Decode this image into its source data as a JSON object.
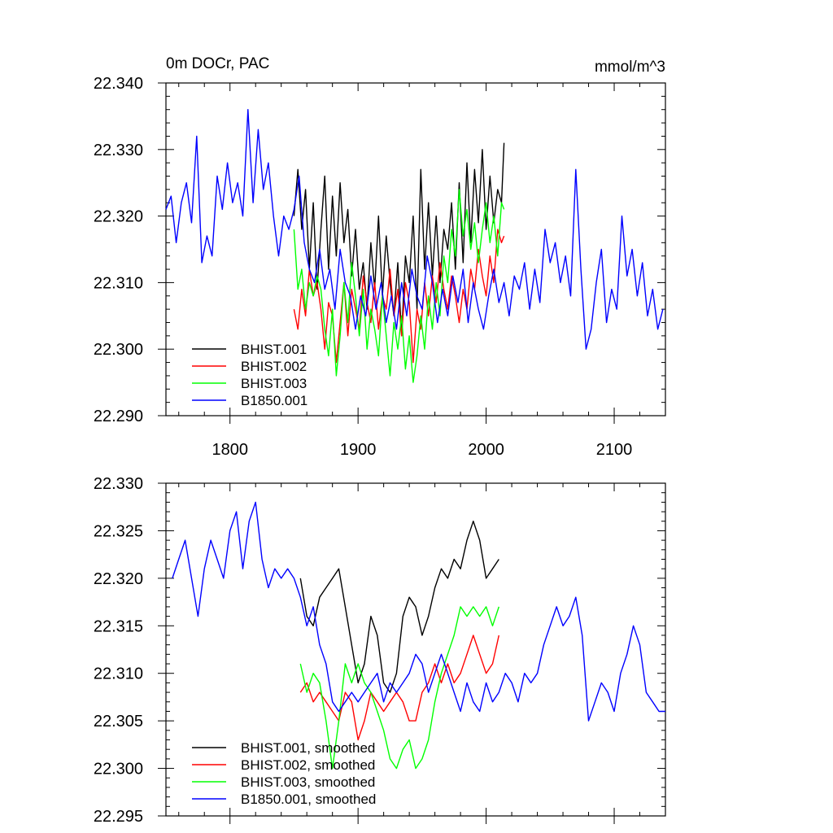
{
  "chart_data": [
    {
      "type": "line",
      "title": "0m DOCr, PAC",
      "units": "mmol/m^3",
      "xlabel": "",
      "ylabel": "",
      "xlim": [
        1750,
        2140
      ],
      "ylim": [
        22.29,
        22.34
      ],
      "xticks": [
        1800,
        1900,
        2000,
        2100
      ],
      "xtick_labels": [
        "1800",
        "1900",
        "2000",
        "2100"
      ],
      "yticks": [
        22.29,
        22.3,
        22.31,
        22.32,
        22.33,
        22.34
      ],
      "ytick_labels": [
        "22.290",
        "22.300",
        "22.310",
        "22.320",
        "22.330",
        "22.340"
      ],
      "legend_position": "bottom-left",
      "series": [
        {
          "name": "BHIST.001",
          "color": "#000000",
          "x": [
            1850,
            1853,
            1856,
            1859,
            1862,
            1865,
            1868,
            1871,
            1874,
            1877,
            1880,
            1883,
            1886,
            1889,
            1892,
            1895,
            1898,
            1901,
            1904,
            1907,
            1910,
            1913,
            1916,
            1919,
            1922,
            1925,
            1928,
            1931,
            1934,
            1937,
            1940,
            1943,
            1946,
            1949,
            1952,
            1955,
            1958,
            1961,
            1964,
            1967,
            1970,
            1973,
            1976,
            1979,
            1982,
            1985,
            1988,
            1991,
            1994,
            1997,
            2000,
            2003,
            2006,
            2009,
            2012,
            2014
          ],
          "y": [
            22.32,
            22.327,
            22.318,
            22.324,
            22.312,
            22.322,
            22.309,
            22.318,
            22.326,
            22.312,
            22.323,
            22.314,
            22.325,
            22.316,
            22.321,
            22.311,
            22.318,
            22.309,
            22.313,
            22.306,
            22.316,
            22.309,
            22.32,
            22.308,
            22.317,
            22.31,
            22.305,
            22.313,
            22.302,
            22.314,
            22.31,
            22.32,
            22.306,
            22.327,
            22.312,
            22.322,
            22.311,
            22.32,
            22.31,
            22.318,
            22.315,
            22.322,
            22.312,
            22.325,
            22.313,
            22.328,
            22.316,
            22.327,
            22.319,
            22.33,
            22.318,
            22.326,
            22.319,
            22.324,
            22.322,
            22.331
          ]
        },
        {
          "name": "BHIST.002",
          "color": "#ff0000",
          "x": [
            1850,
            1853,
            1856,
            1859,
            1862,
            1865,
            1868,
            1871,
            1874,
            1877,
            1880,
            1883,
            1886,
            1889,
            1892,
            1895,
            1898,
            1901,
            1904,
            1907,
            1910,
            1913,
            1916,
            1919,
            1922,
            1925,
            1928,
            1931,
            1934,
            1937,
            1940,
            1943,
            1946,
            1949,
            1952,
            1955,
            1958,
            1961,
            1964,
            1967,
            1970,
            1973,
            1976,
            1979,
            1982,
            1985,
            1988,
            1991,
            1994,
            1997,
            2000,
            2003,
            2006,
            2009,
            2012,
            2014
          ],
          "y": [
            22.306,
            22.303,
            22.309,
            22.305,
            22.312,
            22.308,
            22.31,
            22.306,
            22.3,
            22.307,
            22.305,
            22.298,
            22.304,
            22.31,
            22.302,
            22.309,
            22.306,
            22.303,
            22.311,
            22.307,
            22.304,
            22.31,
            22.303,
            22.308,
            22.306,
            22.312,
            22.305,
            22.309,
            22.302,
            22.31,
            22.307,
            22.298,
            22.306,
            22.303,
            22.31,
            22.305,
            22.311,
            22.307,
            22.313,
            22.309,
            22.306,
            22.311,
            22.308,
            22.304,
            22.309,
            22.306,
            22.312,
            22.309,
            22.315,
            22.311,
            22.308,
            22.314,
            22.31,
            22.318,
            22.316,
            22.317
          ]
        },
        {
          "name": "BHIST.003",
          "color": "#00ff00",
          "x": [
            1850,
            1853,
            1856,
            1859,
            1862,
            1865,
            1868,
            1871,
            1874,
            1877,
            1880,
            1883,
            1886,
            1889,
            1892,
            1895,
            1898,
            1901,
            1904,
            1907,
            1910,
            1913,
            1916,
            1919,
            1922,
            1925,
            1928,
            1931,
            1934,
            1937,
            1940,
            1943,
            1946,
            1949,
            1952,
            1955,
            1958,
            1961,
            1964,
            1967,
            1970,
            1973,
            1976,
            1979,
            1982,
            1985,
            1988,
            1991,
            1994,
            1997,
            2000,
            2003,
            2006,
            2009,
            2012,
            2014
          ],
          "y": [
            22.318,
            22.309,
            22.312,
            22.306,
            22.31,
            22.308,
            22.311,
            22.309,
            22.303,
            22.299,
            22.306,
            22.296,
            22.302,
            22.31,
            22.304,
            22.313,
            22.308,
            22.302,
            22.309,
            22.3,
            22.306,
            22.303,
            22.299,
            22.308,
            22.302,
            22.296,
            22.304,
            22.3,
            22.305,
            22.297,
            22.302,
            22.295,
            22.299,
            22.305,
            22.3,
            22.308,
            22.303,
            22.31,
            22.305,
            22.314,
            22.31,
            22.318,
            22.314,
            22.324,
            22.317,
            22.321,
            22.315,
            22.319,
            22.313,
            22.318,
            22.322,
            22.316,
            22.32,
            22.314,
            22.322,
            22.321
          ]
        },
        {
          "name": "B1850.001",
          "color": "#0000ff",
          "x": [
            1750,
            1754,
            1758,
            1762,
            1766,
            1770,
            1774,
            1778,
            1782,
            1786,
            1790,
            1794,
            1798,
            1802,
            1806,
            1810,
            1814,
            1818,
            1822,
            1826,
            1830,
            1834,
            1838,
            1842,
            1846,
            1850,
            1854,
            1858,
            1862,
            1866,
            1870,
            1874,
            1878,
            1882,
            1886,
            1890,
            1894,
            1898,
            1902,
            1906,
            1910,
            1914,
            1918,
            1922,
            1926,
            1930,
            1934,
            1938,
            1942,
            1946,
            1950,
            1954,
            1958,
            1962,
            1966,
            1970,
            1974,
            1978,
            1982,
            1986,
            1990,
            1994,
            1998,
            2002,
            2006,
            2010,
            2014,
            2018,
            2022,
            2026,
            2030,
            2034,
            2038,
            2042,
            2046,
            2050,
            2054,
            2058,
            2062,
            2066,
            2070,
            2074,
            2078,
            2082,
            2086,
            2090,
            2094,
            2098,
            2102,
            2106,
            2110,
            2114,
            2118,
            2122,
            2126,
            2130,
            2134,
            2138
          ],
          "y": [
            22.321,
            22.323,
            22.316,
            22.322,
            22.325,
            22.319,
            22.332,
            22.313,
            22.317,
            22.314,
            22.326,
            22.321,
            22.328,
            22.322,
            22.325,
            22.32,
            22.336,
            22.322,
            22.333,
            22.324,
            22.328,
            22.32,
            22.314,
            22.32,
            22.318,
            22.321,
            22.326,
            22.316,
            22.312,
            22.31,
            22.315,
            22.309,
            22.312,
            22.306,
            22.315,
            22.31,
            22.308,
            22.303,
            22.308,
            22.305,
            22.311,
            22.306,
            22.31,
            22.304,
            22.308,
            22.303,
            22.31,
            22.305,
            22.312,
            22.308,
            22.306,
            22.314,
            22.31,
            22.304,
            22.309,
            22.305,
            22.311,
            22.307,
            22.312,
            22.304,
            22.31,
            22.306,
            22.303,
            22.308,
            22.312,
            22.307,
            22.31,
            22.305,
            22.311,
            22.309,
            22.313,
            22.306,
            22.312,
            22.307,
            22.318,
            22.313,
            22.316,
            22.31,
            22.314,
            22.308,
            22.327,
            22.312,
            22.3,
            22.303,
            22.31,
            22.315,
            22.304,
            22.309,
            22.306,
            22.32,
            22.311,
            22.315,
            22.308,
            22.313,
            22.305,
            22.309,
            22.303,
            22.306
          ]
        }
      ]
    },
    {
      "type": "line",
      "title": "",
      "xlabel": "",
      "ylabel": "",
      "xlim": [
        1750,
        2140
      ],
      "ylim": [
        22.295,
        22.33
      ],
      "xticks": [
        1800,
        1900,
        2000,
        2100
      ],
      "yticks": [
        22.295,
        22.3,
        22.305,
        22.31,
        22.315,
        22.32,
        22.325,
        22.33
      ],
      "ytick_labels": [
        "22.295",
        "22.300",
        "22.305",
        "22.310",
        "22.315",
        "22.320",
        "22.325",
        "22.330"
      ],
      "legend_position": "bottom-left",
      "series": [
        {
          "name": "BHIST.001, smoothed",
          "color": "#000000",
          "x": [
            1855,
            1860,
            1865,
            1870,
            1875,
            1880,
            1885,
            1890,
            1895,
            1900,
            1905,
            1910,
            1915,
            1920,
            1925,
            1930,
            1935,
            1940,
            1945,
            1950,
            1955,
            1960,
            1965,
            1970,
            1975,
            1980,
            1985,
            1990,
            1995,
            2000,
            2005,
            2010
          ],
          "y": [
            22.32,
            22.316,
            22.315,
            22.318,
            22.319,
            22.32,
            22.321,
            22.317,
            22.313,
            22.309,
            22.311,
            22.316,
            22.314,
            22.309,
            22.308,
            22.31,
            22.316,
            22.318,
            22.317,
            22.314,
            22.316,
            22.319,
            22.321,
            22.32,
            22.322,
            22.321,
            22.324,
            22.326,
            22.324,
            22.32,
            22.321,
            22.322
          ]
        },
        {
          "name": "BHIST.002, smoothed",
          "color": "#ff0000",
          "x": [
            1855,
            1860,
            1865,
            1870,
            1875,
            1880,
            1885,
            1890,
            1895,
            1900,
            1905,
            1910,
            1915,
            1920,
            1925,
            1930,
            1935,
            1940,
            1945,
            1950,
            1955,
            1960,
            1965,
            1970,
            1975,
            1980,
            1985,
            1990,
            1995,
            2000,
            2005,
            2010
          ],
          "y": [
            22.308,
            22.309,
            22.307,
            22.308,
            22.307,
            22.306,
            22.305,
            22.308,
            22.307,
            22.303,
            22.305,
            22.308,
            22.307,
            22.306,
            22.307,
            22.308,
            22.307,
            22.305,
            22.305,
            22.308,
            22.309,
            22.311,
            22.309,
            22.311,
            22.309,
            22.31,
            22.312,
            22.314,
            22.312,
            22.31,
            22.311,
            22.314
          ]
        },
        {
          "name": "BHIST.003, smoothed",
          "color": "#00ff00",
          "x": [
            1855,
            1860,
            1865,
            1870,
            1875,
            1880,
            1885,
            1890,
            1895,
            1900,
            1905,
            1910,
            1915,
            1920,
            1925,
            1930,
            1935,
            1940,
            1945,
            1950,
            1955,
            1960,
            1965,
            1970,
            1975,
            1980,
            1985,
            1990,
            1995,
            2000,
            2005,
            2010
          ],
          "y": [
            22.311,
            22.308,
            22.31,
            22.309,
            22.305,
            22.3,
            22.305,
            22.311,
            22.309,
            22.311,
            22.309,
            22.308,
            22.306,
            22.304,
            22.301,
            22.3,
            22.302,
            22.303,
            22.3,
            22.301,
            22.303,
            22.307,
            22.31,
            22.312,
            22.314,
            22.317,
            22.316,
            22.317,
            22.316,
            22.317,
            22.315,
            22.317
          ]
        },
        {
          "name": "B1850.001, smoothed",
          "color": "#0000ff",
          "x": [
            1755,
            1760,
            1765,
            1770,
            1775,
            1780,
            1785,
            1790,
            1795,
            1800,
            1805,
            1810,
            1815,
            1820,
            1825,
            1830,
            1835,
            1840,
            1845,
            1850,
            1855,
            1860,
            1865,
            1870,
            1875,
            1880,
            1885,
            1890,
            1895,
            1900,
            1905,
            1910,
            1915,
            1920,
            1925,
            1930,
            1935,
            1940,
            1945,
            1950,
            1955,
            1960,
            1965,
            1970,
            1975,
            1980,
            1985,
            1990,
            1995,
            2000,
            2005,
            2010,
            2015,
            2020,
            2025,
            2030,
            2035,
            2040,
            2045,
            2050,
            2055,
            2060,
            2065,
            2070,
            2075,
            2080,
            2085,
            2090,
            2095,
            2100,
            2105,
            2110,
            2115,
            2120,
            2125,
            2130,
            2135,
            2140
          ],
          "y": [
            22.32,
            22.322,
            22.324,
            22.32,
            22.316,
            22.321,
            22.324,
            22.322,
            22.32,
            22.325,
            22.327,
            22.321,
            22.326,
            22.328,
            22.322,
            22.319,
            22.321,
            22.32,
            22.321,
            22.32,
            22.318,
            22.315,
            22.317,
            22.313,
            22.311,
            22.307,
            22.306,
            22.307,
            22.308,
            22.307,
            22.308,
            22.309,
            22.31,
            22.307,
            22.309,
            22.308,
            22.309,
            22.31,
            22.312,
            22.311,
            22.308,
            22.31,
            22.312,
            22.31,
            22.308,
            22.306,
            22.309,
            22.307,
            22.306,
            22.309,
            22.307,
            22.308,
            22.31,
            22.309,
            22.307,
            22.31,
            22.309,
            22.31,
            22.313,
            22.315,
            22.317,
            22.315,
            22.316,
            22.318,
            22.314,
            22.305,
            22.307,
            22.309,
            22.308,
            22.306,
            22.31,
            22.312,
            22.315,
            22.313,
            22.308,
            22.307,
            22.306,
            22.306
          ]
        }
      ]
    }
  ]
}
